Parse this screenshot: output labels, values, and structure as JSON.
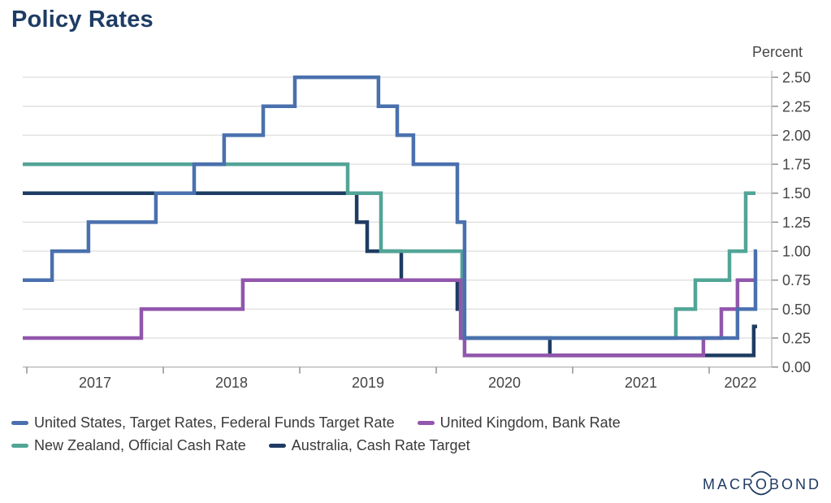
{
  "title": "Policy Rates",
  "chart_data": {
    "type": "line",
    "subtype": "step",
    "title": "Policy Rates",
    "xlabel": "",
    "ylabel": "Percent",
    "grid": true,
    "legend_position": "bottom",
    "ylim": [
      0,
      2.5
    ],
    "y_tick_step": 0.25,
    "y_tick_labels": [
      "0.00",
      "0.25",
      "0.50",
      "0.75",
      "1.00",
      "1.25",
      "1.50",
      "1.75",
      "2.00",
      "2.25",
      "2.50"
    ],
    "x_tick_years": [
      "2017",
      "2018",
      "2019",
      "2020",
      "2021",
      "2022"
    ],
    "x_range_years": [
      2016.97,
      2022.46
    ],
    "series": [
      {
        "name": "United States, Target Rates, Federal Funds Target Rate",
        "color": "#4a70ae",
        "start_year": 2016.97,
        "end_year": 2022.351,
        "initial_value": 0.75,
        "steps": [
          [
            2017.185,
            1.0
          ],
          [
            2017.452,
            1.25
          ],
          [
            2017.946,
            1.5
          ],
          [
            2018.226,
            1.75
          ],
          [
            2018.446,
            2.0
          ],
          [
            2018.732,
            2.25
          ],
          [
            2018.964,
            2.5
          ],
          [
            2019.577,
            2.25
          ],
          [
            2019.714,
            2.0
          ],
          [
            2019.833,
            1.75
          ],
          [
            2020.155,
            1.25
          ],
          [
            2020.208,
            0.25
          ],
          [
            2022.208,
            0.5
          ],
          [
            2022.339,
            1.0
          ]
        ]
      },
      {
        "name": "United Kingdom, Bank Rate",
        "color": "#9256ac",
        "start_year": 2016.97,
        "end_year": 2022.339,
        "initial_value": 0.25,
        "steps": [
          [
            2017.839,
            0.5
          ],
          [
            2018.583,
            0.75
          ],
          [
            2020.179,
            0.25
          ],
          [
            2020.208,
            0.1
          ],
          [
            2021.958,
            0.25
          ],
          [
            2022.089,
            0.5
          ],
          [
            2022.208,
            0.75
          ]
        ]
      },
      {
        "name": "New Zealand, Official Cash Rate",
        "color": "#52a596",
        "start_year": 2016.97,
        "end_year": 2022.339,
        "initial_value": 1.75,
        "steps": [
          [
            2019.351,
            1.5
          ],
          [
            2019.595,
            1.0
          ],
          [
            2020.19,
            0.25
          ],
          [
            2021.756,
            0.5
          ],
          [
            2021.899,
            0.75
          ],
          [
            2022.149,
            1.0
          ],
          [
            2022.268,
            1.5
          ]
        ]
      },
      {
        "name": "Australia, Cash Rate Target",
        "color": "#1e3c63",
        "start_year": 2016.97,
        "end_year": 2022.351,
        "initial_value": 1.5,
        "steps": [
          [
            2019.417,
            1.25
          ],
          [
            2019.494,
            1.0
          ],
          [
            2019.744,
            0.75
          ],
          [
            2020.155,
            0.5
          ],
          [
            2020.202,
            0.25
          ],
          [
            2020.833,
            0.1
          ],
          [
            2022.327,
            0.35
          ]
        ]
      }
    ],
    "draw_order": [
      3,
      2,
      1,
      0
    ],
    "legend_rows": [
      [
        0,
        1
      ],
      [
        2,
        3
      ]
    ]
  },
  "branding": {
    "logo_pre": "MACR",
    "logo_o": "O",
    "logo_post": "BOND"
  }
}
